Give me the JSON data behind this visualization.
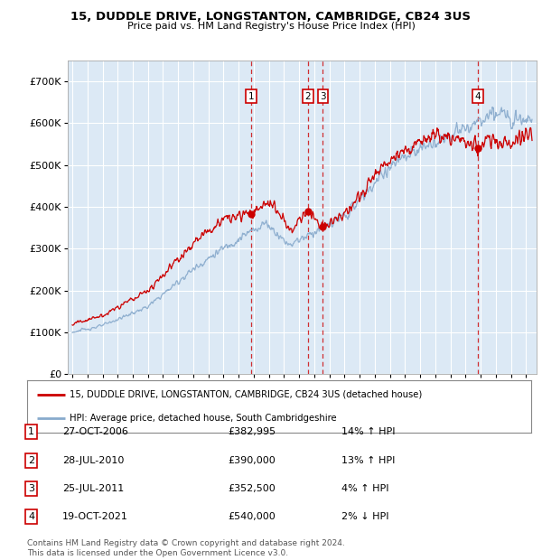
{
  "title_line1": "15, DUDDLE DRIVE, LONGSTANTON, CAMBRIDGE, CB24 3US",
  "title_line2": "Price paid vs. HM Land Registry's House Price Index (HPI)",
  "background_color": "#dce9f5",
  "grid_color": "#ffffff",
  "ylim": [
    0,
    750000
  ],
  "yticks": [
    0,
    100000,
    200000,
    300000,
    400000,
    500000,
    600000,
    700000
  ],
  "ytick_labels": [
    "£0",
    "£100K",
    "£200K",
    "£300K",
    "£400K",
    "£500K",
    "£600K",
    "£700K"
  ],
  "sale_dates_num": [
    2006.83,
    2010.58,
    2011.57,
    2021.8
  ],
  "sale_prices": [
    382995,
    390000,
    352500,
    540000
  ],
  "sale_labels": [
    "1",
    "2",
    "3",
    "4"
  ],
  "vline_color": "#cc0000",
  "sale_dot_color": "#cc0000",
  "red_line_color": "#cc0000",
  "blue_line_color": "#88aacc",
  "legend_line1_label": "15, DUDDLE DRIVE, LONGSTANTON, CAMBRIDGE, CB24 3US (detached house)",
  "legend_line2_label": "HPI: Average price, detached house, South Cambridgeshire",
  "table_data": [
    [
      "1",
      "27-OCT-2006",
      "£382,995",
      "14% ↑ HPI"
    ],
    [
      "2",
      "28-JUL-2010",
      "£390,000",
      "13% ↑ HPI"
    ],
    [
      "3",
      "25-JUL-2011",
      "£352,500",
      "4% ↑ HPI"
    ],
    [
      "4",
      "19-OCT-2021",
      "£540,000",
      "2% ↓ HPI"
    ]
  ],
  "footnote": "Contains HM Land Registry data © Crown copyright and database right 2024.\nThis data is licensed under the Open Government Licence v3.0."
}
